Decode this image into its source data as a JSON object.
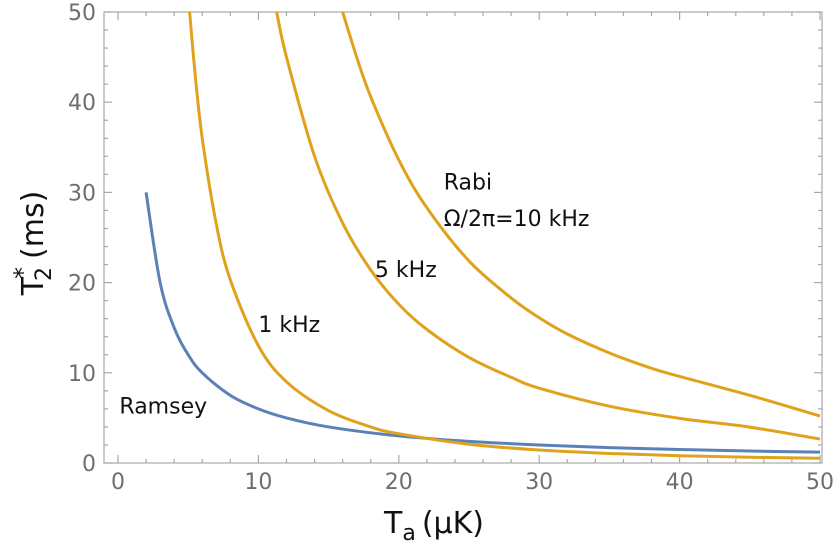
{
  "chart_data": {
    "type": "line",
    "xlabel": "T",
    "xlabel_sub": "a",
    "xlabel_units": "(μK)",
    "ylabel": "T",
    "ylabel_sub": "2",
    "ylabel_sup": "*",
    "ylabel_units": "(ms)",
    "xlim": [
      0,
      50
    ],
    "ylim": [
      0,
      50
    ],
    "x_ticks": [
      "0",
      "10",
      "20",
      "30",
      "40",
      "50"
    ],
    "y_ticks": [
      "0",
      "10",
      "20",
      "30",
      "40",
      "50"
    ],
    "grid": false,
    "colors": {
      "ramsey": "#5b82b8",
      "rabi": "#e0a21c"
    },
    "series": [
      {
        "name": "Ramsey",
        "color": "#5b82b8",
        "points": [
          [
            2,
            30
          ],
          [
            3,
            20
          ],
          [
            4,
            15
          ],
          [
            5,
            12
          ],
          [
            6,
            10
          ],
          [
            8,
            7.5
          ],
          [
            10,
            6
          ],
          [
            12,
            5
          ],
          [
            15,
            4
          ],
          [
            20,
            3
          ],
          [
            25,
            2.4
          ],
          [
            30,
            2
          ],
          [
            35,
            1.7
          ],
          [
            40,
            1.5
          ],
          [
            45,
            1.33
          ],
          [
            50,
            1.2
          ]
        ]
      },
      {
        "name": "1 kHz",
        "color": "#e0a21c",
        "points": [
          [
            5.1,
            50
          ],
          [
            5.5,
            43
          ],
          [
            6,
            36
          ],
          [
            7,
            26.5
          ],
          [
            8,
            20.3
          ],
          [
            10,
            13
          ],
          [
            12,
            9
          ],
          [
            15,
            5.8
          ],
          [
            18,
            4
          ],
          [
            20,
            3.25
          ],
          [
            25,
            2.08
          ],
          [
            30,
            1.44
          ],
          [
            35,
            1.06
          ],
          [
            40,
            0.81
          ],
          [
            45,
            0.64
          ],
          [
            50,
            0.52
          ]
        ]
      },
      {
        "name": "5 kHz",
        "color": "#e0a21c",
        "points": [
          [
            11.3,
            50
          ],
          [
            12,
            45
          ],
          [
            14,
            34
          ],
          [
            16,
            26.6
          ],
          [
            18,
            21.4
          ],
          [
            20,
            17.6
          ],
          [
            22,
            14.8
          ],
          [
            25,
            11.7
          ],
          [
            28,
            9.5
          ],
          [
            30,
            8.3
          ],
          [
            35,
            6.3
          ],
          [
            40,
            4.95
          ],
          [
            45,
            3.98
          ],
          [
            50,
            2.65
          ]
        ]
      },
      {
        "name": "Rabi Ω/2π=10 kHz",
        "color": "#e0a21c",
        "points": [
          [
            16,
            50
          ],
          [
            17,
            45
          ],
          [
            18,
            40.6
          ],
          [
            20,
            33.6
          ],
          [
            22,
            28.3
          ],
          [
            25,
            22.4
          ],
          [
            28,
            18.3
          ],
          [
            30,
            16.1
          ],
          [
            32,
            14.3
          ],
          [
            35,
            12.2
          ],
          [
            38,
            10.5
          ],
          [
            40,
            9.6
          ],
          [
            45,
            7.5
          ],
          [
            50,
            5.2
          ]
        ]
      }
    ],
    "annotations": [
      {
        "text": "Ramsey",
        "x": 0.1,
        "y": 5.5
      },
      {
        "text": "1 kHz",
        "x": 10,
        "y": 14.5
      },
      {
        "text": "5 kHz",
        "x": 18.3,
        "y": 20.6
      },
      {
        "text": "Rabi",
        "x": 23.2,
        "y": 30.3
      },
      {
        "text": "Ω/2π=10 kHz",
        "x": 23.2,
        "y": 26.3
      }
    ]
  }
}
